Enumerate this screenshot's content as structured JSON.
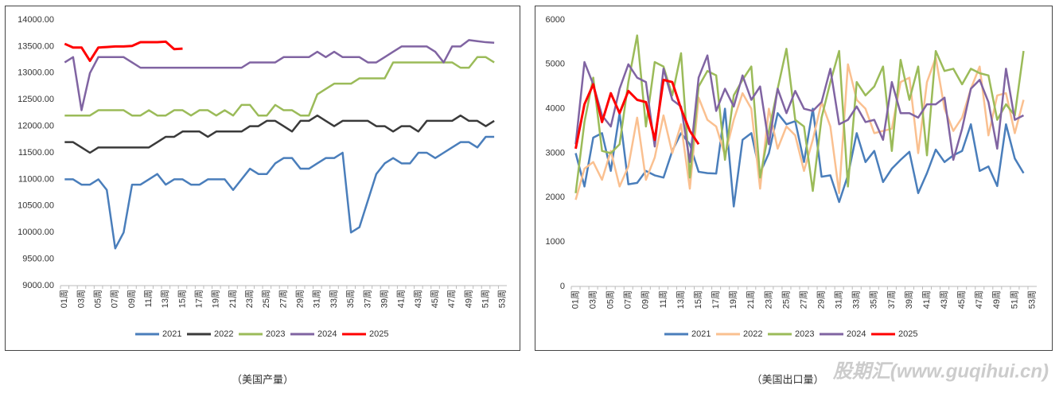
{
  "chart_data": [
    {
      "type": "line",
      "caption": "（美国产量）",
      "categories": [
        "01周",
        null,
        "03周",
        null,
        "05周",
        null,
        "07周",
        null,
        "09周",
        null,
        "11周",
        null,
        "13周",
        null,
        "15周",
        null,
        "17周",
        null,
        "19周",
        null,
        "21周",
        null,
        "23周",
        null,
        "25周",
        null,
        "27周",
        null,
        "29周",
        null,
        "31周",
        null,
        "33周",
        null,
        "35周",
        null,
        "37周",
        null,
        "39周",
        null,
        "41周",
        null,
        "43周",
        null,
        "45周",
        null,
        "47周",
        null,
        "49周",
        null,
        "51周",
        null,
        "53周"
      ],
      "ylim": [
        9000,
        14000
      ],
      "yticks": [
        {
          "value": 9000,
          "label": "9000.00"
        },
        {
          "value": 9500,
          "label": "9500.00"
        },
        {
          "value": 10000,
          "label": "10000.00"
        },
        {
          "value": 10500,
          "label": "10500.00"
        },
        {
          "value": 11000,
          "label": "11000.00"
        },
        {
          "value": 11500,
          "label": "11500.00"
        },
        {
          "value": 12000,
          "label": "12000.00"
        },
        {
          "value": 12500,
          "label": "12500.00"
        },
        {
          "value": 13000,
          "label": "13000.00"
        },
        {
          "value": 13500,
          "label": "13500.00"
        },
        {
          "value": 14000,
          "label": "14000.00"
        }
      ],
      "grid": false,
      "series": [
        {
          "name": "2021",
          "color": "#4a7ebb",
          "values": [
            11000,
            11000,
            10900,
            10900,
            11000,
            10800,
            9700,
            10000,
            10900,
            10900,
            11000,
            11100,
            10900,
            11000,
            11000,
            10900,
            10900,
            11000,
            11000,
            11000,
            10800,
            11000,
            11200,
            11100,
            11100,
            11300,
            11400,
            11400,
            11200,
            11200,
            11300,
            11400,
            11400,
            11500,
            10000,
            10100,
            10600,
            11100,
            11300,
            11400,
            11300,
            11300,
            11500,
            11500,
            11400,
            11500,
            11600,
            11700,
            11700,
            11600,
            11800,
            11800,
            null
          ]
        },
        {
          "name": "2022",
          "color": "#3a3a3a",
          "values": [
            11700,
            11700,
            11600,
            11500,
            11600,
            11600,
            11600,
            11600,
            11600,
            11600,
            11600,
            11700,
            11800,
            11800,
            11900,
            11900,
            11900,
            11800,
            11900,
            11900,
            11900,
            11900,
            12000,
            12000,
            12100,
            12100,
            12000,
            11900,
            12100,
            12100,
            12200,
            12100,
            12000,
            12100,
            12100,
            12100,
            12100,
            12000,
            12000,
            11900,
            12000,
            12000,
            11900,
            12100,
            12100,
            12100,
            12100,
            12200,
            12100,
            12100,
            12000,
            12100,
            null
          ]
        },
        {
          "name": "2023",
          "color": "#9bbb59",
          "values": [
            12200,
            12200,
            12200,
            12200,
            12300,
            12300,
            12300,
            12300,
            12200,
            12200,
            12300,
            12200,
            12200,
            12300,
            12300,
            12200,
            12300,
            12300,
            12200,
            12300,
            12200,
            12400,
            12400,
            12200,
            12200,
            12400,
            12300,
            12300,
            12200,
            12200,
            12600,
            12700,
            12800,
            12800,
            12800,
            12900,
            12900,
            12900,
            12900,
            13200,
            13200,
            13200,
            13200,
            13200,
            13200,
            13200,
            13200,
            13100,
            13100,
            13300,
            13300,
            13200,
            null
          ]
        },
        {
          "name": "2024",
          "color": "#8064a2",
          "values": [
            13200,
            13300,
            12300,
            13000,
            13300,
            13300,
            13300,
            13300,
            13200,
            13100,
            13100,
            13100,
            13100,
            13100,
            13100,
            13100,
            13100,
            13100,
            13100,
            13100,
            13100,
            13100,
            13200,
            13200,
            13200,
            13200,
            13300,
            13300,
            13300,
            13300,
            13400,
            13300,
            13400,
            13300,
            13300,
            13300,
            13200,
            13200,
            13300,
            13400,
            13500,
            13500,
            13500,
            13500,
            13400,
            13200,
            13500,
            13500,
            13620,
            13600,
            13580,
            13570,
            null
          ]
        },
        {
          "name": "2025",
          "color": "#ff0000",
          "values": [
            13550,
            13480,
            13480,
            13230,
            13480,
            13490,
            13500,
            13500,
            13510,
            13580,
            13580,
            13580,
            13590,
            13450,
            13460,
            null,
            null,
            null,
            null,
            null,
            null,
            null,
            null,
            null,
            null,
            null,
            null,
            null,
            null,
            null,
            null,
            null,
            null,
            null,
            null,
            null,
            null,
            null,
            null,
            null,
            null,
            null,
            null,
            null,
            null,
            null,
            null,
            null,
            null,
            null,
            null,
            null,
            null
          ]
        }
      ]
    },
    {
      "type": "line",
      "caption": "（美国出口量）",
      "categories": [
        "01周",
        null,
        "03周",
        null,
        "05周",
        null,
        "07周",
        null,
        "09周",
        null,
        "11周",
        null,
        "13周",
        null,
        "15周",
        null,
        "17周",
        null,
        "19周",
        null,
        "21周",
        null,
        "23周",
        null,
        "25周",
        null,
        "27周",
        null,
        "29周",
        null,
        "31周",
        null,
        "33周",
        null,
        "35周",
        null,
        "37周",
        null,
        "39周",
        null,
        "41周",
        null,
        "43周",
        null,
        "45周",
        null,
        "47周",
        null,
        "49周",
        null,
        "51周",
        null,
        "53周"
      ],
      "ylim": [
        0,
        6000
      ],
      "yticks": [
        0,
        1000,
        2000,
        3000,
        4000,
        5000,
        6000
      ],
      "grid": false,
      "series": [
        {
          "name": "2021",
          "color": "#4a7ebb",
          "values": [
            3000,
            2250,
            3350,
            3450,
            2600,
            3900,
            2300,
            2330,
            2600,
            2500,
            2450,
            3050,
            3450,
            3200,
            2580,
            2550,
            2540,
            4000,
            1800,
            3300,
            3450,
            2550,
            3000,
            3900,
            3650,
            3720,
            2800,
            4000,
            2470,
            2500,
            1900,
            2500,
            3450,
            2800,
            3050,
            2350,
            2650,
            2850,
            3030,
            2100,
            2550,
            3080,
            2800,
            2950,
            3050,
            3650,
            2600,
            2700,
            2260,
            3650,
            2880,
            2550,
            null
          ]
        },
        {
          "name": "2022",
          "color": "#fac090",
          "values": [
            1950,
            2650,
            2800,
            2400,
            3050,
            2250,
            2700,
            3800,
            2400,
            2900,
            3850,
            3000,
            3650,
            2200,
            4250,
            3750,
            3600,
            2950,
            3750,
            4350,
            4000,
            2200,
            4000,
            3100,
            3600,
            3400,
            2600,
            3300,
            4150,
            3600,
            2100,
            5000,
            4200,
            4000,
            3450,
            3500,
            3550,
            4600,
            4700,
            3000,
            4600,
            5150,
            4000,
            3500,
            3800,
            4450,
            4950,
            3400,
            4300,
            4350,
            3450,
            4200,
            null
          ]
        },
        {
          "name": "2023",
          "color": "#9bbb59",
          "values": [
            2100,
            3700,
            4700,
            3050,
            3000,
            3200,
            4600,
            5650,
            3600,
            5050,
            4950,
            4300,
            5250,
            2450,
            4500,
            4850,
            4750,
            2850,
            4300,
            4650,
            4950,
            2450,
            3500,
            4450,
            5350,
            3750,
            3600,
            2150,
            3800,
            4600,
            5300,
            2250,
            4600,
            4300,
            4500,
            4950,
            3050,
            5100,
            4200,
            4950,
            2950,
            5300,
            4850,
            4900,
            4550,
            4900,
            4800,
            4750,
            3750,
            4100,
            3850,
            5300,
            null
          ]
        },
        {
          "name": "2024",
          "color": "#8064a2",
          "values": [
            3200,
            5050,
            4550,
            3850,
            3600,
            4450,
            5000,
            4700,
            4600,
            3150,
            4900,
            4200,
            4050,
            2800,
            4700,
            5200,
            3950,
            4450,
            4050,
            4750,
            4200,
            4500,
            3200,
            4450,
            3900,
            4400,
            4000,
            3950,
            4150,
            4900,
            3650,
            3750,
            4050,
            3700,
            3750,
            3300,
            4600,
            3900,
            3900,
            3800,
            4100,
            4100,
            4250,
            2850,
            3550,
            4450,
            4650,
            4150,
            3100,
            4900,
            3750,
            3850,
            null
          ]
        },
        {
          "name": "2025",
          "color": "#ff0000",
          "values": [
            3100,
            4100,
            4550,
            3700,
            4350,
            3900,
            4400,
            4200,
            4150,
            3300,
            4650,
            4600,
            4000,
            3500,
            3200,
            null,
            null,
            null,
            null,
            null,
            null,
            null,
            null,
            null,
            null,
            null,
            null,
            null,
            null,
            null,
            null,
            null,
            null,
            null,
            null,
            null,
            null,
            null,
            null,
            null,
            null,
            null,
            null,
            null,
            null,
            null,
            null,
            null,
            null,
            null,
            null,
            null,
            null
          ]
        }
      ]
    }
  ],
  "watermark": "股期汇(www.guqihui.cn)"
}
